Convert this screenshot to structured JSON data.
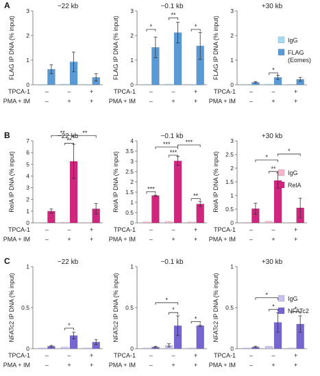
{
  "panels": [
    {
      "letter": "A",
      "ylabel": "FLAG IP DNA (% input)",
      "legend": [
        {
          "label": "IgG",
          "color": "#a7d9f2"
        },
        {
          "label": "FLAG",
          "label2": "(Eomes)",
          "color": "#5b9bd5"
        }
      ],
      "row_labels": [
        "TPCA-1",
        "PMA + IM"
      ],
      "conditions": [
        [
          "–",
          "–"
        ],
        [
          "–",
          "+"
        ],
        [
          "+",
          "+"
        ]
      ]
    },
    {
      "letter": "B",
      "ylabel": "RelA IP DNA (% input)",
      "legend": [
        {
          "label": "IgG",
          "color": "#f2b6cf"
        },
        {
          "label": "RelA",
          "color": "#d0267e"
        }
      ],
      "row_labels": [
        "TPCA-1",
        "PMA + IM"
      ],
      "conditions": [
        [
          "–",
          "–"
        ],
        [
          "–",
          "+"
        ],
        [
          "+",
          "+"
        ]
      ]
    },
    {
      "letter": "C",
      "ylabel": "NFATc2 IP DNA (% input)",
      "legend": [
        {
          "label": "IgG",
          "color": "#c7c3ee"
        },
        {
          "label": "NFATc2",
          "color": "#7667d0"
        }
      ],
      "row_labels": [
        "TPCA-1",
        "PMA + IM"
      ],
      "conditions": [
        [
          "–",
          "–"
        ],
        [
          "–",
          "+"
        ],
        [
          "+",
          "+"
        ]
      ]
    }
  ],
  "chart_data": [
    {
      "type": "bar",
      "panel": "A",
      "title": "−22 kb",
      "ylabel": "FLAG IP DNA (% input)",
      "ylim": [
        0,
        3
      ],
      "yticks": [
        0,
        1,
        2,
        3
      ],
      "series": [
        {
          "name": "IgG",
          "values": [
            0.02,
            0.03,
            0.02
          ],
          "errors": [
            0,
            0,
            0
          ]
        },
        {
          "name": "FLAG (Eomes)",
          "values": [
            0.63,
            0.93,
            0.3
          ],
          "errors": [
            0.18,
            0.4,
            0.15
          ]
        }
      ],
      "significance": []
    },
    {
      "type": "bar",
      "panel": "A",
      "title": "−0.1 kb",
      "ylabel": "FLAG IP DNA (% input)",
      "ylim": [
        0,
        3
      ],
      "yticks": [
        0,
        1,
        2,
        3
      ],
      "series": [
        {
          "name": "IgG",
          "values": [
            0.02,
            0.03,
            0.02
          ],
          "errors": [
            0,
            0,
            0
          ]
        },
        {
          "name": "FLAG (Eomes)",
          "values": [
            1.52,
            2.12,
            1.58
          ],
          "errors": [
            0.42,
            0.42,
            0.55
          ]
        }
      ],
      "significance": [
        {
          "a": "0.0",
          "b": "0.1",
          "label": "*",
          "y": 2.25
        },
        {
          "a": "1.0",
          "b": "1.1",
          "label": "**",
          "y": 2.72
        },
        {
          "a": "2.0",
          "b": "2.1",
          "label": "*",
          "y": 2.25
        }
      ]
    },
    {
      "type": "bar",
      "panel": "A",
      "title": "+30 kb",
      "ylabel": "FLAG IP DNA (% input)",
      "ylim": [
        0,
        3
      ],
      "yticks": [
        0,
        1,
        2,
        3
      ],
      "series": [
        {
          "name": "IgG",
          "values": [
            0.02,
            0.03,
            0.02
          ],
          "errors": [
            0,
            0,
            0
          ]
        },
        {
          "name": "FLAG (Eomes)",
          "values": [
            0.1,
            0.3,
            0.22
          ],
          "errors": [
            0.03,
            0.08,
            0.08
          ]
        }
      ],
      "significance": [
        {
          "a": "1.0",
          "b": "1.1",
          "label": "*",
          "y": 0.48
        }
      ]
    },
    {
      "type": "bar",
      "panel": "B",
      "title": "−22 kb",
      "ylabel": "RelA IP DNA (% input)",
      "ylim": [
        0,
        7
      ],
      "yticks": [
        0,
        1,
        2,
        3,
        4,
        5,
        6,
        7
      ],
      "series": [
        {
          "name": "IgG",
          "values": [
            0.04,
            0.06,
            0.04
          ],
          "errors": [
            0,
            0,
            0
          ]
        },
        {
          "name": "RelA",
          "values": [
            1.0,
            5.25,
            1.2
          ],
          "errors": [
            0.18,
            1.45,
            0.45
          ]
        }
      ],
      "significance": [
        {
          "a": "1.0",
          "b": "1.1",
          "label": "**",
          "y": 6.8
        },
        {
          "a": "0.1",
          "b": "1.1",
          "label": "**",
          "y": 7.45
        },
        {
          "a": "1.1",
          "b": "2.1",
          "label": "**",
          "y": 7.45
        }
      ]
    },
    {
      "type": "bar",
      "panel": "B",
      "title": "−0.1 kb",
      "ylabel": "RelA IP DNA (% input)",
      "ylim": [
        0,
        4
      ],
      "yticks": [
        0,
        0.5,
        1,
        1.5,
        2,
        2.5,
        3,
        3.5,
        4
      ],
      "series": [
        {
          "name": "IgG",
          "values": [
            0.05,
            0.07,
            0.05
          ],
          "errors": [
            0,
            0,
            0
          ]
        },
        {
          "name": "RelA",
          "values": [
            1.33,
            3.02,
            0.92
          ],
          "errors": [
            0.03,
            0.22,
            0.12
          ]
        }
      ],
      "significance": [
        {
          "a": "0.0",
          "b": "0.1",
          "label": "***",
          "y": 1.52
        },
        {
          "a": "1.0",
          "b": "1.1",
          "label": "***",
          "y": 3.3
        },
        {
          "a": "2.0",
          "b": "2.1",
          "label": "**",
          "y": 1.18
        },
        {
          "a": "0.1",
          "b": "1.1",
          "label": "***",
          "y": 3.7
        },
        {
          "a": "1.1",
          "b": "2.1",
          "label": "***",
          "y": 3.8
        }
      ]
    },
    {
      "type": "bar",
      "panel": "B",
      "title": "+30 kb",
      "ylabel": "RelA IP DNA (% input)",
      "ylim": [
        0,
        3
      ],
      "yticks": [
        0,
        0.5,
        1,
        1.5,
        2,
        2.5,
        3
      ],
      "series": [
        {
          "name": "IgG",
          "values": [
            0.02,
            0.06,
            0.02
          ],
          "errors": [
            0,
            0,
            0
          ]
        },
        {
          "name": "RelA",
          "values": [
            0.52,
            1.55,
            0.55
          ],
          "errors": [
            0.2,
            0.28,
            0.35
          ]
        }
      ],
      "significance": [
        {
          "a": "1.0",
          "b": "1.1",
          "label": "**",
          "y": 1.88
        },
        {
          "a": "0.1",
          "b": "1.1",
          "label": "*",
          "y": 2.3
        },
        {
          "a": "1.1",
          "b": "2.1",
          "label": "*",
          "y": 2.52
        }
      ]
    },
    {
      "type": "bar",
      "panel": "C",
      "title": "−22 kb",
      "ylabel": "NFATc2 IP DNA (% input)",
      "ylim": [
        0,
        1
      ],
      "yticks": [
        0,
        0.5,
        1
      ],
      "series": [
        {
          "name": "IgG",
          "values": [
            0.01,
            0.02,
            0.01
          ],
          "errors": [
            0,
            0,
            0
          ]
        },
        {
          "name": "NFATc2",
          "values": [
            0.03,
            0.16,
            0.08
          ],
          "errors": [
            0.01,
            0.04,
            0.03
          ]
        }
      ],
      "significance": [
        {
          "a": "1.0",
          "b": "1.1",
          "label": "*",
          "y": 0.25
        }
      ]
    },
    {
      "type": "bar",
      "panel": "C",
      "title": "−0.1 kb",
      "ylabel": "NFATc2 IP DNA (% input)",
      "ylim": [
        0,
        1
      ],
      "yticks": [
        0,
        0.5,
        1
      ],
      "series": [
        {
          "name": "IgG",
          "values": [
            0.01,
            0.04,
            0.01
          ],
          "errors": [
            0,
            0.02,
            0
          ]
        },
        {
          "name": "NFATc2",
          "values": [
            0.02,
            0.28,
            0.28
          ],
          "errors": [
            0.01,
            0.12,
            0.01
          ]
        }
      ],
      "significance": [
        {
          "a": "1.0",
          "b": "1.1",
          "label": "*",
          "y": 0.44
        },
        {
          "a": "2.0",
          "b": "2.1",
          "label": "*",
          "y": 0.33
        },
        {
          "a": "0.1",
          "b": "1.1",
          "label": "*",
          "y": 0.56
        }
      ]
    },
    {
      "type": "bar",
      "panel": "C",
      "title": "+30 kb",
      "ylabel": "NFATc2 IP DNA (% input)",
      "ylim": [
        0,
        1
      ],
      "yticks": [
        0,
        0.5,
        1
      ],
      "series": [
        {
          "name": "IgG",
          "values": [
            0.01,
            0.03,
            0.01
          ],
          "errors": [
            0,
            0,
            0
          ]
        },
        {
          "name": "NFATc2",
          "values": [
            0.02,
            0.32,
            0.3
          ],
          "errors": [
            0.01,
            0.12,
            0.1
          ]
        }
      ],
      "significance": [
        {
          "a": "1.0",
          "b": "1.1",
          "label": "*",
          "y": 0.48
        },
        {
          "a": "2.0",
          "b": "2.1",
          "label": "*",
          "y": 0.45
        },
        {
          "a": "0.1",
          "b": "1.1",
          "label": "*",
          "y": 0.62
        }
      ]
    }
  ]
}
